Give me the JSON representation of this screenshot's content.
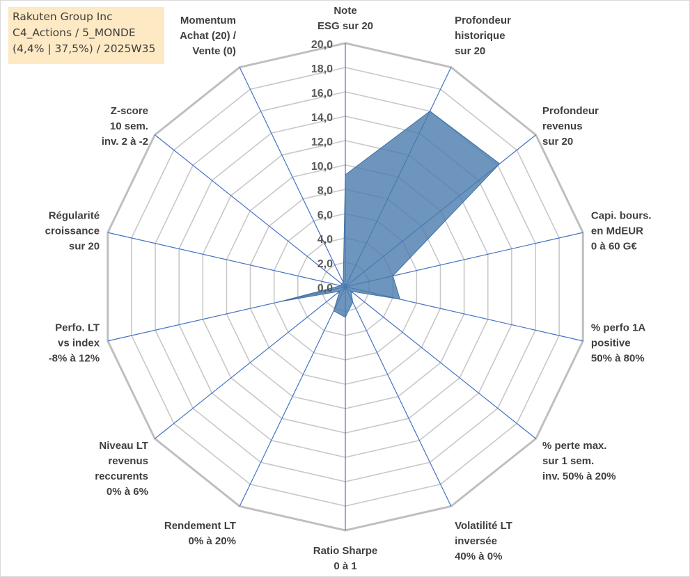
{
  "title_lines": [
    "Rakuten Group Inc",
    "C4_Actions / 5_MONDE",
    "(4,4% | 37,5%) / 2025W35"
  ],
  "chart_data": {
    "type": "radar",
    "r_min": 0,
    "r_max": 20,
    "r_step": 2,
    "tick_labels": [
      "0,0",
      "2,0",
      "4,0",
      "6,0",
      "8,0",
      "10,0",
      "12,0",
      "14,0",
      "16,0",
      "18,0",
      "20,0"
    ],
    "axes": [
      {
        "lines": [
          "Note",
          "ESG sur 20"
        ],
        "value": 9.2
      },
      {
        "lines": [
          "Profondeur",
          "historique",
          "sur 20"
        ],
        "value": 16.0
      },
      {
        "lines": [
          "Profondeur",
          "revenus",
          "sur 20"
        ],
        "value": 16.2
      },
      {
        "lines": [
          "Capi. bours.",
          "en MdEUR",
          "0 à 60 G€"
        ],
        "value": 4.0
      },
      {
        "lines": [
          "% perfo 1A",
          "positive",
          "50% à 80%"
        ],
        "value": 4.6
      },
      {
        "lines": [
          "% perte max.",
          "sur 1 sem.",
          "inv. 50% à 20%"
        ],
        "value": 0.6
      },
      {
        "lines": [
          "Volatilité LT",
          "inversée",
          "40% à 0%"
        ],
        "value": 1.4
      },
      {
        "lines": [
          "Ratio Sharpe",
          "0 à 1"
        ],
        "value": 2.5
      },
      {
        "lines": [
          "Rendement LT",
          "0% à 20%"
        ],
        "value": 2.2
      },
      {
        "lines": [
          "Niveau LT",
          "revenus",
          "reccurents",
          "0% à 6%"
        ],
        "value": 0.6
      },
      {
        "lines": [
          "Perfo. LT",
          "vs index",
          "-8% à 12%"
        ],
        "value": 5.5
      },
      {
        "lines": [
          "Régularité",
          "croissance",
          "sur 20"
        ],
        "value": 0.4
      },
      {
        "lines": [
          "Z-score",
          "10 sem.",
          "inv. 2 à -2"
        ],
        "value": 0.4
      },
      {
        "lines": [
          "Momentum",
          "Achat (20) /",
          "Vente (0)"
        ],
        "value": 0.4
      }
    ],
    "colors": {
      "fill": "#4a7aad",
      "fill_opacity": 0.8,
      "outline": "#3f6fa3",
      "spoke": "#4472c4",
      "grid": "#c8c8c8",
      "grid_outer": "#bfbfbf"
    }
  }
}
